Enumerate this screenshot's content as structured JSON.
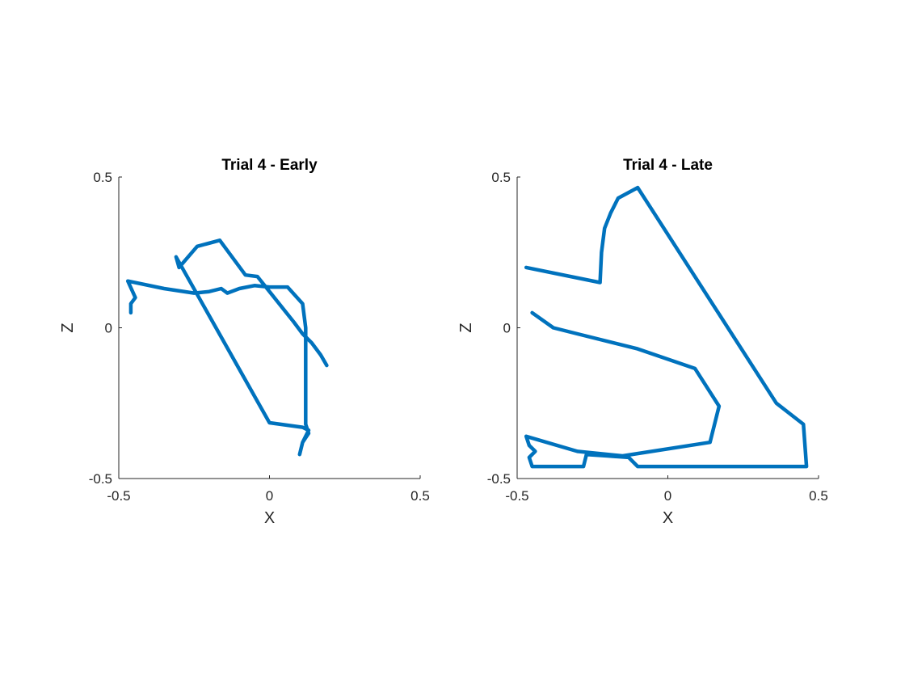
{
  "chart_data": [
    {
      "type": "line",
      "title": "Trial 4 - Early",
      "xlabel": "X",
      "ylabel": "Z",
      "xlim": [
        -0.5,
        0.5
      ],
      "ylim": [
        -0.5,
        0.5
      ],
      "xticks": [
        -0.5,
        0,
        0.5
      ],
      "xtick_labels": [
        "-0.5",
        "0",
        "0.5"
      ],
      "yticks": [
        -0.5,
        0,
        0.5
      ],
      "ytick_labels": [
        "-0.5",
        "0",
        "0.5"
      ],
      "grid": false,
      "color": "#0072BD",
      "series": [
        {
          "x": [
            -0.46,
            -0.46,
            -0.445,
            -0.47,
            -0.35,
            -0.25,
            -0.2,
            -0.16,
            -0.14,
            -0.1,
            -0.05,
            0,
            0.06,
            0.11,
            0.12,
            0.12,
            0.12,
            0.13,
            0.11,
            0.1,
            0.11,
            0.13,
            0.11,
            0.0,
            -0.31,
            -0.3,
            -0.24,
            -0.165,
            -0.08,
            -0.04,
            0.0,
            0.04,
            0.08,
            0.11,
            0.14,
            0.17,
            0.19
          ],
          "y": [
            0.05,
            0.08,
            0.1,
            0.155,
            0.13,
            0.115,
            0.12,
            0.13,
            0.115,
            0.13,
            0.14,
            0.135,
            0.135,
            0.08,
            0.0,
            -0.15,
            -0.32,
            -0.35,
            -0.38,
            -0.42,
            -0.38,
            -0.34,
            -0.33,
            -0.315,
            0.235,
            0.2,
            0.27,
            0.29,
            0.175,
            0.17,
            0.12,
            0.07,
            0.02,
            -0.02,
            -0.05,
            -0.09,
            -0.125
          ]
        }
      ]
    },
    {
      "type": "line",
      "title": "Trial 4 - Late",
      "xlabel": "X",
      "ylabel": "Z",
      "xlim": [
        -0.5,
        0.5
      ],
      "ylim": [
        -0.5,
        0.5
      ],
      "xticks": [
        -0.5,
        0,
        0.5
      ],
      "xtick_labels": [
        "-0.5",
        "0",
        "0.5"
      ],
      "yticks": [
        -0.5,
        0,
        0.5
      ],
      "ytick_labels": [
        "-0.5",
        "0",
        "0.5"
      ],
      "grid": false,
      "color": "#0072BD",
      "series": [
        {
          "x": [
            -0.47,
            -0.225,
            -0.22,
            -0.21,
            -0.19,
            -0.165,
            -0.1,
            0.36,
            0.45,
            0.46,
            0.1,
            -0.1,
            -0.13,
            -0.2,
            -0.27,
            -0.28,
            -0.45,
            -0.46,
            -0.44,
            -0.46,
            -0.47,
            -0.3,
            -0.15,
            0.14,
            0.17,
            0.09,
            -0.1,
            -0.3,
            -0.38,
            -0.45
          ],
          "y": [
            0.2,
            0.15,
            0.25,
            0.33,
            0.38,
            0.43,
            0.465,
            -0.25,
            -0.32,
            -0.46,
            -0.46,
            -0.46,
            -0.43,
            -0.425,
            -0.42,
            -0.46,
            -0.46,
            -0.43,
            -0.41,
            -0.39,
            -0.36,
            -0.41,
            -0.425,
            -0.38,
            -0.26,
            -0.135,
            -0.07,
            -0.02,
            0.0,
            0.05
          ]
        }
      ]
    }
  ]
}
